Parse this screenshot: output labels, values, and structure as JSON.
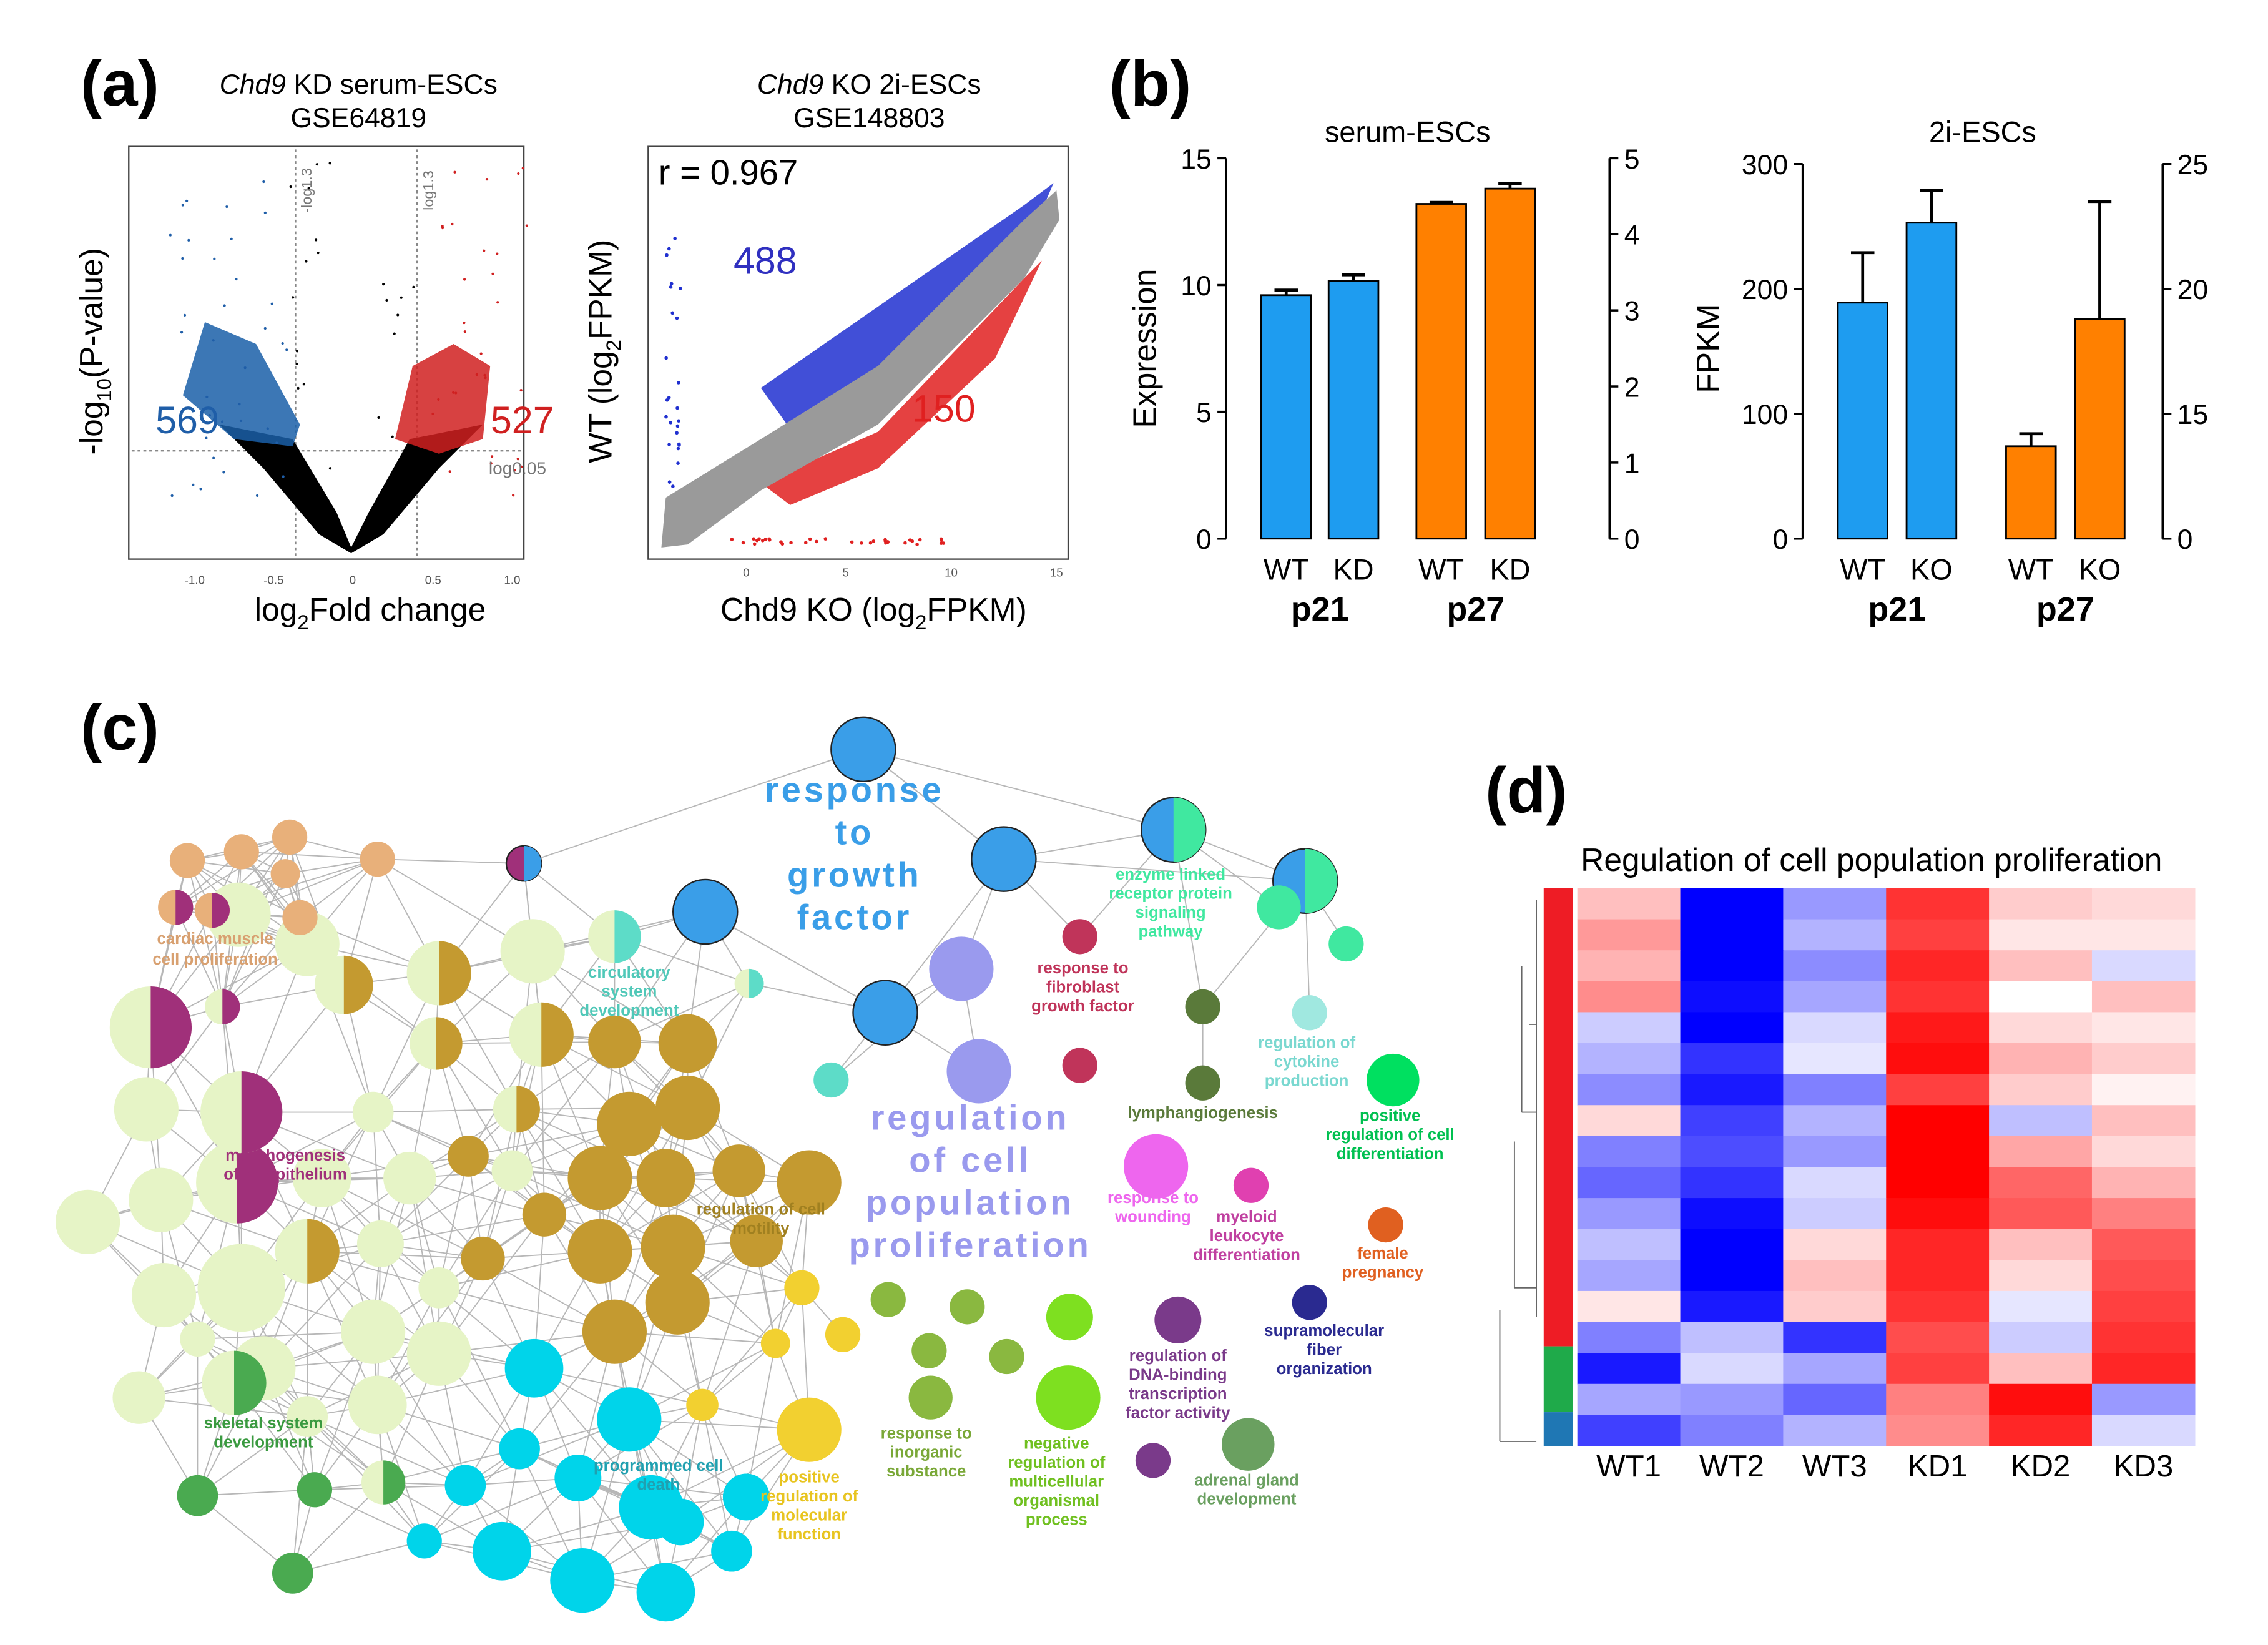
{
  "panel_labels": [
    "(a)",
    "(b)",
    "(c)",
    "(d)"
  ],
  "volcano": {
    "title": [
      "Chd9",
      " KD serum-ESCs"
    ],
    "subtitle": "GSE64819",
    "xlabel": [
      "log",
      "2",
      "Fold change"
    ],
    "ylabel": [
      "-log",
      "10",
      "(P-value)"
    ],
    "xticks": [
      "-1.0",
      "-0.5",
      "0",
      "0.5",
      "1.0"
    ],
    "down_count": "569",
    "up_count": "527",
    "threshold_labels": [
      "-log1.3",
      "log1.3",
      "log0.05"
    ]
  },
  "scatter": {
    "title": [
      "Chd9",
      " KO 2i-ESCs"
    ],
    "subtitle": "GSE148803",
    "xlabel": [
      "Chd9 KO (log",
      "2",
      "FPKM)"
    ],
    "ylabel": [
      "WT (log",
      "2",
      "FPKM)"
    ],
    "xticks": [
      "0",
      "5",
      "10",
      "15"
    ],
    "correlation": "r = 0.967",
    "up_count": "488",
    "down_count": "150"
  },
  "chart_data": [
    {
      "type": "bar",
      "title": "serum-ESCs",
      "ylabel": "Expression",
      "categories": [
        "WT",
        "KD",
        "WT",
        "KD"
      ],
      "groups": [
        "p21",
        "p27"
      ],
      "ylim": [
        0,
        15
      ],
      "yticks": [
        0,
        5,
        10,
        15
      ],
      "y2lim": [
        0,
        5
      ],
      "y2ticks": [
        0,
        1,
        2,
        3,
        4,
        5
      ],
      "series": [
        {
          "color": "#1e9cf0",
          "axis": "y",
          "values": [
            9.6,
            10.15,
            null,
            null
          ],
          "errors": [
            0.2,
            0.25,
            null,
            null
          ]
        },
        {
          "color": "#ff8000",
          "axis": "y2",
          "values": [
            null,
            null,
            4.4,
            4.6
          ],
          "errors": [
            null,
            null,
            0.02,
            0.07
          ]
        }
      ]
    },
    {
      "type": "bar",
      "title": "2i-ESCs",
      "ylabel": "FPKM",
      "categories": [
        "WT",
        "KO",
        "WT",
        "KO"
      ],
      "groups": [
        "p21",
        "p27"
      ],
      "ylim": [
        0,
        300
      ],
      "yticks": [
        0,
        100,
        200,
        300
      ],
      "y2lim": [
        10,
        25
      ],
      "y2ticks": [
        {
          "value": 10,
          "label": "0"
        },
        15,
        20,
        25
      ],
      "series": [
        {
          "color": "#1e9cf0",
          "axis": "y",
          "values": [
            189,
            253,
            null,
            null
          ],
          "errors": [
            40,
            26,
            null,
            null
          ]
        },
        {
          "color": "#ff8000",
          "axis": "y2",
          "values": [
            null,
            null,
            13.7,
            18.8
          ],
          "errors": [
            null,
            null,
            0.5,
            4.7
          ]
        }
      ]
    },
    {
      "type": "heatmap",
      "title": "Regulation of cell population proliferation",
      "categories": [
        "WT1",
        "WT2",
        "WT3",
        "KD1",
        "KD2",
        "KD3"
      ],
      "values": [
        [
          0.5,
          -2,
          -0.8,
          1.6,
          0.4,
          0.3
        ],
        [
          0.8,
          -2,
          -0.6,
          1.5,
          0.2,
          0.2
        ],
        [
          0.6,
          -2,
          -0.9,
          1.7,
          0.5,
          -0.3
        ],
        [
          0.9,
          -1.9,
          -0.7,
          1.6,
          0,
          0.5
        ],
        [
          -0.4,
          -2,
          -0.3,
          1.8,
          0.3,
          0.2
        ],
        [
          -0.6,
          -1.6,
          -0.2,
          1.9,
          0.6,
          0.4
        ],
        [
          -0.9,
          -1.8,
          -1,
          1.5,
          0.4,
          0.1
        ],
        [
          0.3,
          -1.5,
          -0.6,
          2,
          -0.5,
          0.5
        ],
        [
          -1,
          -1.4,
          -0.8,
          2,
          0.7,
          0.3
        ],
        [
          -1.2,
          -1.6,
          -0.3,
          2,
          1.2,
          0.6
        ],
        [
          -0.8,
          -1.9,
          -0.4,
          1.9,
          1.3,
          1
        ],
        [
          -0.5,
          -2,
          0.3,
          1.7,
          0.5,
          1.3
        ],
        [
          -0.7,
          -2,
          0.5,
          1.7,
          0.3,
          1.4
        ],
        [
          0.2,
          -1.8,
          0.4,
          1.6,
          -0.2,
          1.5
        ],
        [
          -1,
          -0.5,
          -1.6,
          1.4,
          -0.4,
          1.6
        ],
        [
          -1.8,
          -0.3,
          -0.7,
          1.5,
          0.5,
          1.7
        ],
        [
          -0.7,
          -0.8,
          -1.2,
          1,
          1.9,
          -0.8
        ],
        [
          -1.5,
          -1,
          -0.6,
          0.9,
          1.7,
          -0.3
        ]
      ]
    }
  ],
  "network": {
    "labels": [
      [
        "response",
        "to",
        "growth",
        "factor"
      ],
      [
        "regulation",
        "of cell",
        "population",
        "proliferation"
      ],
      [
        "cardiac muscle",
        "cell proliferation"
      ],
      [
        "enzyme linked",
        "receptor protein",
        "signaling",
        "pathway"
      ],
      [
        "response to",
        "fibroblast",
        "growth factor"
      ],
      [
        "lymphangiogenesis"
      ],
      [
        "regulation of",
        "cytokine",
        "production"
      ],
      [
        "positive",
        "regulation of cell",
        "differentiation"
      ],
      [
        "response to",
        "wounding"
      ],
      [
        "myeloid",
        "leukocyte",
        "differentiation"
      ],
      [
        "female",
        "pregnancy"
      ],
      [
        "supramolecular",
        "fiber",
        "organization"
      ],
      [
        "regulation of",
        "DNA-binding",
        "transcription",
        "factor activity"
      ],
      [
        "adrenal gland",
        "development"
      ],
      [
        "negative",
        "regulation of",
        "multicellular",
        "organismal",
        "process"
      ],
      [
        "response to",
        "inorganic",
        "substance"
      ],
      [
        "positive",
        "regulation of",
        "molecular",
        "function"
      ],
      [
        "programmed cell",
        "death"
      ],
      [
        "skeletal system",
        "development"
      ],
      [
        "morphogenesis",
        "of an epithelium"
      ],
      [
        "regulation of cell",
        "motility"
      ],
      [
        "circulatory",
        "system",
        "development"
      ]
    ]
  }
}
